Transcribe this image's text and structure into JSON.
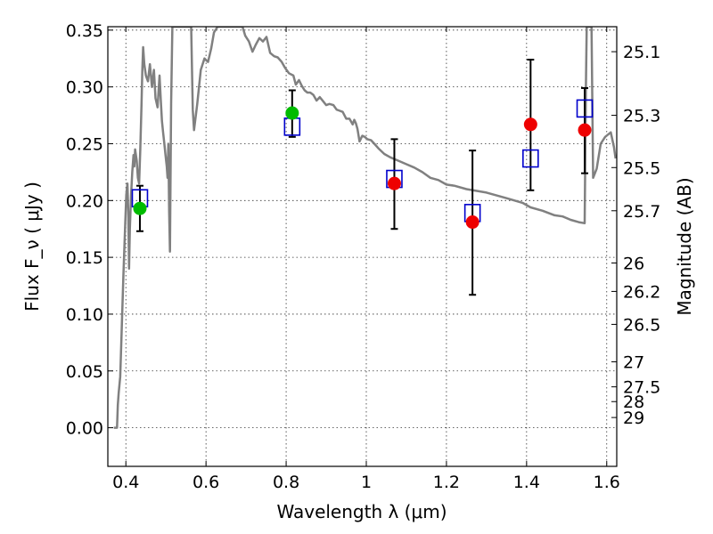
{
  "chart_data": {
    "type": "scatter",
    "xlabel": "Wavelength  λ (μm)",
    "ylabel": "Flux  F_ν  ( μJy )",
    "ylabel_right": "Magnitude (AB)",
    "xlim": [
      0.355,
      1.625
    ],
    "ylim": [
      -0.034,
      0.353
    ],
    "grid": true,
    "x_ticks": [
      0.4,
      0.6,
      0.8,
      1.0,
      1.2,
      1.4,
      1.6
    ],
    "x_tick_labels": [
      "0.4",
      "0.6",
      "0.8",
      "1",
      "1.2",
      "1.4",
      "1.6"
    ],
    "y_ticks": [
      0.0,
      0.05,
      0.1,
      0.15,
      0.2,
      0.25,
      0.3,
      0.35
    ],
    "y_tick_labels": [
      "0.00",
      "0.05",
      "0.10",
      "0.15",
      "0.20",
      "0.25",
      "0.30",
      "0.35"
    ],
    "right_ticks": [
      {
        "label": "25.1",
        "flux": 0.331
      },
      {
        "label": "25.3",
        "flux": 0.275
      },
      {
        "label": "25.5",
        "flux": 0.229
      },
      {
        "label": "25.7",
        "flux": 0.191
      },
      {
        "label": "26",
        "flux": 0.145
      },
      {
        "label": "26.2",
        "flux": 0.12
      },
      {
        "label": "26.5",
        "flux": 0.091
      },
      {
        "label": "27",
        "flux": 0.058
      },
      {
        "label": "27.5",
        "flux": 0.036
      },
      {
        "label": "28",
        "flux": 0.023
      },
      {
        "label": "29",
        "flux": 0.009
      }
    ],
    "model_spectrum": {
      "color": "#808080",
      "points": [
        [
          0.37,
          0.0
        ],
        [
          0.372,
          0.0
        ],
        [
          0.375,
          0.0
        ],
        [
          0.378,
          0.0
        ],
        [
          0.38,
          0.02
        ],
        [
          0.382,
          0.03
        ],
        [
          0.386,
          0.045
        ],
        [
          0.39,
          0.09
        ],
        [
          0.394,
          0.135
        ],
        [
          0.398,
          0.175
        ],
        [
          0.401,
          0.205
        ],
        [
          0.404,
          0.215
        ],
        [
          0.406,
          0.19
        ],
        [
          0.408,
          0.14
        ],
        [
          0.41,
          0.175
        ],
        [
          0.413,
          0.205
        ],
        [
          0.416,
          0.225
        ],
        [
          0.419,
          0.24
        ],
        [
          0.421,
          0.23
        ],
        [
          0.423,
          0.245
        ],
        [
          0.427,
          0.235
        ],
        [
          0.43,
          0.22
        ],
        [
          0.433,
          0.215
        ],
        [
          0.436,
          0.245
        ],
        [
          0.439,
          0.285
        ],
        [
          0.441,
          0.315
        ],
        [
          0.443,
          0.335
        ],
        [
          0.446,
          0.32
        ],
        [
          0.45,
          0.31
        ],
        [
          0.455,
          0.305
        ],
        [
          0.46,
          0.32
        ],
        [
          0.465,
          0.3
        ],
        [
          0.47,
          0.315
        ],
        [
          0.474,
          0.29
        ],
        [
          0.479,
          0.282
        ],
        [
          0.484,
          0.31
        ],
        [
          0.487,
          0.29
        ],
        [
          0.49,
          0.27
        ],
        [
          0.493,
          0.26
        ],
        [
          0.496,
          0.25
        ],
        [
          0.499,
          0.24
        ],
        [
          0.502,
          0.23
        ],
        [
          0.504,
          0.22
        ],
        [
          0.506,
          0.25
        ],
        [
          0.508,
          0.19
        ],
        [
          0.51,
          0.155
        ],
        [
          0.513,
          0.285
        ],
        [
          0.516,
          0.353
        ],
        [
          0.563,
          0.353
        ],
        [
          0.567,
          0.28
        ],
        [
          0.57,
          0.262
        ],
        [
          0.578,
          0.285
        ],
        [
          0.587,
          0.315
        ],
        [
          0.596,
          0.325
        ],
        [
          0.605,
          0.322
        ],
        [
          0.613,
          0.334
        ],
        [
          0.62,
          0.348
        ],
        [
          0.629,
          0.353
        ],
        [
          0.691,
          0.353
        ],
        [
          0.698,
          0.345
        ],
        [
          0.707,
          0.34
        ],
        [
          0.716,
          0.331
        ],
        [
          0.724,
          0.337
        ],
        [
          0.733,
          0.343
        ],
        [
          0.742,
          0.34
        ],
        [
          0.751,
          0.344
        ],
        [
          0.76,
          0.33
        ],
        [
          0.77,
          0.327
        ],
        [
          0.779,
          0.326
        ],
        [
          0.789,
          0.322
        ],
        [
          0.797,
          0.317
        ],
        [
          0.807,
          0.312
        ],
        [
          0.818,
          0.31
        ],
        [
          0.824,
          0.302
        ],
        [
          0.832,
          0.306
        ],
        [
          0.839,
          0.301
        ],
        [
          0.846,
          0.297
        ],
        [
          0.853,
          0.295
        ],
        [
          0.86,
          0.295
        ],
        [
          0.868,
          0.293
        ],
        [
          0.876,
          0.288
        ],
        [
          0.884,
          0.291
        ],
        [
          0.893,
          0.287
        ],
        [
          0.9,
          0.284
        ],
        [
          0.908,
          0.285
        ],
        [
          0.918,
          0.284
        ],
        [
          0.926,
          0.28
        ],
        [
          0.934,
          0.279
        ],
        [
          0.941,
          0.278
        ],
        [
          0.95,
          0.272
        ],
        [
          0.958,
          0.272
        ],
        [
          0.966,
          0.267
        ],
        [
          0.97,
          0.271
        ],
        [
          0.974,
          0.268
        ],
        [
          0.978,
          0.263
        ],
        [
          0.983,
          0.252
        ],
        [
          0.99,
          0.257
        ],
        [
          0.996,
          0.256
        ],
        [
          1.003,
          0.254
        ],
        [
          1.012,
          0.253
        ],
        [
          1.02,
          0.25
        ],
        [
          1.03,
          0.246
        ],
        [
          1.045,
          0.241
        ],
        [
          1.06,
          0.238
        ],
        [
          1.08,
          0.235
        ],
        [
          1.1,
          0.232
        ],
        [
          1.12,
          0.229
        ],
        [
          1.14,
          0.225
        ],
        [
          1.16,
          0.22
        ],
        [
          1.18,
          0.218
        ],
        [
          1.2,
          0.214
        ],
        [
          1.22,
          0.213
        ],
        [
          1.25,
          0.21
        ],
        [
          1.3,
          0.207
        ],
        [
          1.35,
          0.202
        ],
        [
          1.39,
          0.198
        ],
        [
          1.41,
          0.194
        ],
        [
          1.44,
          0.191
        ],
        [
          1.47,
          0.187
        ],
        [
          1.49,
          0.186
        ],
        [
          1.51,
          0.183
        ],
        [
          1.53,
          0.181
        ],
        [
          1.545,
          0.18
        ],
        [
          1.548,
          0.3
        ],
        [
          1.55,
          0.353
        ],
        [
          1.562,
          0.353
        ],
        [
          1.566,
          0.22
        ],
        [
          1.575,
          0.228
        ],
        [
          1.585,
          0.25
        ],
        [
          1.596,
          0.256
        ],
        [
          1.61,
          0.26
        ],
        [
          1.618,
          0.247
        ],
        [
          1.622,
          0.237
        ]
      ]
    },
    "model_boxes": {
      "color": "#0000cc",
      "points": [
        {
          "x": 0.435,
          "y": 0.202
        },
        {
          "x": 0.815,
          "y": 0.265
        },
        {
          "x": 1.07,
          "y": 0.219
        },
        {
          "x": 1.265,
          "y": 0.189
        },
        {
          "x": 1.41,
          "y": 0.237
        },
        {
          "x": 1.545,
          "y": 0.281
        }
      ]
    },
    "observed": [
      {
        "x": 0.435,
        "y": 0.193,
        "err_low": 0.173,
        "err_high": 0.213,
        "color": "#00bb00"
      },
      {
        "x": 0.815,
        "y": 0.277,
        "err_low": 0.256,
        "err_high": 0.297,
        "color": "#00bb00"
      },
      {
        "x": 1.07,
        "y": 0.215,
        "err_low": 0.175,
        "err_high": 0.254,
        "color": "#ee0000"
      },
      {
        "x": 1.265,
        "y": 0.181,
        "err_low": 0.117,
        "err_high": 0.244,
        "color": "#ee0000"
      },
      {
        "x": 1.41,
        "y": 0.267,
        "err_low": 0.209,
        "err_high": 0.324,
        "color": "#ee0000"
      },
      {
        "x": 1.545,
        "y": 0.262,
        "err_low": 0.224,
        "err_high": 0.299,
        "color": "#ee0000"
      }
    ]
  }
}
